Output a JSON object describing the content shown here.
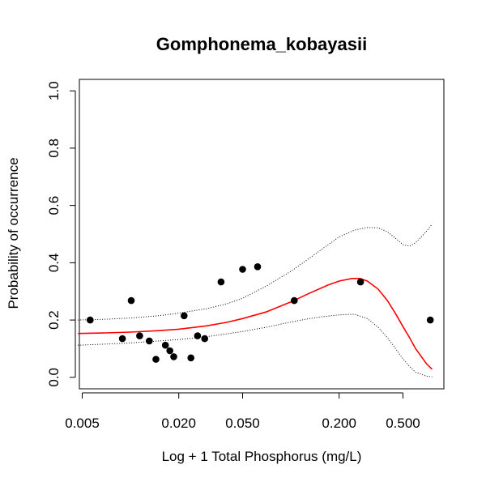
{
  "chart_data": {
    "type": "scatter",
    "title": "Gomphonema_kobayasii",
    "xlabel": "Log + 1 Total Phosphorus (mg/L)",
    "ylabel": "Probability of occurrence",
    "x_scale": "log",
    "xlim": [
      0.0048,
      0.9
    ],
    "ylim": [
      -0.04,
      1.04
    ],
    "x_ticks": [
      0.005,
      0.02,
      0.05,
      0.2,
      0.5
    ],
    "x_tick_labels": [
      "0.005",
      "0.020",
      "0.050",
      "0.200",
      "0.500"
    ],
    "y_ticks": [
      0.0,
      0.2,
      0.4,
      0.6,
      0.8,
      1.0
    ],
    "y_tick_labels": [
      "0.0",
      "0.2",
      "0.4",
      "0.6",
      "0.8",
      "1.0"
    ],
    "grid": false,
    "colors": {
      "points": "#000000",
      "fit": "#ff0000",
      "ci": "#000000"
    },
    "points": [
      {
        "x": 0.0056,
        "y": 0.2
      },
      {
        "x": 0.0089,
        "y": 0.135
      },
      {
        "x": 0.0101,
        "y": 0.268
      },
      {
        "x": 0.0114,
        "y": 0.145
      },
      {
        "x": 0.0131,
        "y": 0.127
      },
      {
        "x": 0.0144,
        "y": 0.063
      },
      {
        "x": 0.0165,
        "y": 0.112
      },
      {
        "x": 0.0176,
        "y": 0.093
      },
      {
        "x": 0.0186,
        "y": 0.072
      },
      {
        "x": 0.0216,
        "y": 0.215
      },
      {
        "x": 0.0238,
        "y": 0.068
      },
      {
        "x": 0.0262,
        "y": 0.145
      },
      {
        "x": 0.029,
        "y": 0.135
      },
      {
        "x": 0.0367,
        "y": 0.333
      },
      {
        "x": 0.05,
        "y": 0.377
      },
      {
        "x": 0.062,
        "y": 0.386
      },
      {
        "x": 0.105,
        "y": 0.268
      },
      {
        "x": 0.272,
        "y": 0.333
      },
      {
        "x": 0.74,
        "y": 0.2
      }
    ],
    "series": [
      {
        "style": "solid",
        "x": [
          0.0047,
          0.007,
          0.01,
          0.015,
          0.02,
          0.03,
          0.04,
          0.05,
          0.07,
          0.1,
          0.13,
          0.17,
          0.2,
          0.24,
          0.27,
          0.3,
          0.35,
          0.4,
          0.45,
          0.5,
          0.55,
          0.6,
          0.7,
          0.76
        ],
        "y": [
          0.153,
          0.155,
          0.158,
          0.163,
          0.168,
          0.18,
          0.192,
          0.205,
          0.228,
          0.263,
          0.293,
          0.322,
          0.336,
          0.345,
          0.345,
          0.336,
          0.308,
          0.268,
          0.222,
          0.177,
          0.138,
          0.1,
          0.048,
          0.028
        ]
      },
      {
        "style": "dotted",
        "x": [
          0.0047,
          0.007,
          0.01,
          0.015,
          0.02,
          0.03,
          0.04,
          0.05,
          0.07,
          0.1,
          0.13,
          0.17,
          0.2,
          0.25,
          0.3,
          0.35,
          0.4,
          0.45,
          0.5,
          0.55,
          0.6,
          0.65,
          0.7,
          0.76
        ],
        "y": [
          0.2,
          0.203,
          0.207,
          0.215,
          0.224,
          0.24,
          0.257,
          0.276,
          0.318,
          0.37,
          0.415,
          0.462,
          0.49,
          0.514,
          0.523,
          0.522,
          0.508,
          0.485,
          0.463,
          0.458,
          0.47,
          0.49,
          0.51,
          0.535
        ]
      },
      {
        "style": "dotted",
        "x": [
          0.0047,
          0.007,
          0.01,
          0.015,
          0.02,
          0.03,
          0.04,
          0.05,
          0.07,
          0.1,
          0.13,
          0.17,
          0.2,
          0.25,
          0.3,
          0.35,
          0.4,
          0.45,
          0.5,
          0.55,
          0.6,
          0.7,
          0.76
        ],
        "y": [
          0.112,
          0.116,
          0.12,
          0.127,
          0.132,
          0.142,
          0.152,
          0.16,
          0.175,
          0.193,
          0.205,
          0.214,
          0.218,
          0.22,
          0.205,
          0.175,
          0.138,
          0.1,
          0.065,
          0.038,
          0.018,
          0.004,
          0.002
        ]
      }
    ]
  }
}
